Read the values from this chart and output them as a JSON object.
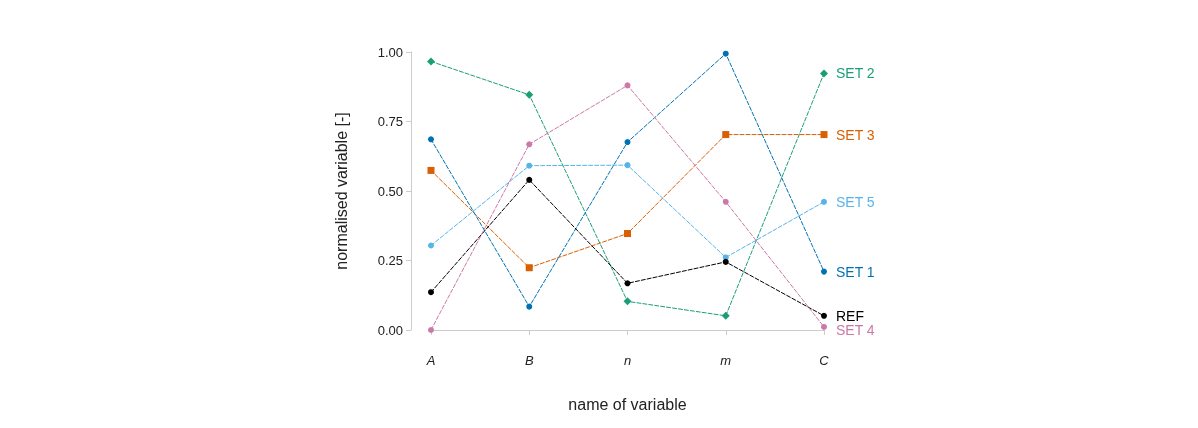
{
  "chart_data": {
    "type": "line",
    "xlabel": "name of variable",
    "ylabel": "normalised variable [-]",
    "categories": [
      "A",
      "B",
      "n",
      "m",
      "C"
    ],
    "ylim": [
      0,
      1
    ],
    "yticks": [
      {
        "value": 0,
        "label": "0.00"
      },
      {
        "value": 0.25,
        "label": "0.25"
      },
      {
        "value": 0.5,
        "label": "0.50"
      },
      {
        "value": 0.75,
        "label": "0.75"
      },
      {
        "value": 1,
        "label": "1.00"
      }
    ],
    "grid": false,
    "legend": false,
    "line_style": "dashed",
    "series": [
      {
        "name": "SET 2",
        "color": "#1b9e77",
        "marker": "diamond",
        "values": [
          0.966,
          0.846,
          0.103,
          0.051,
          0.923
        ]
      },
      {
        "name": "SET 3",
        "color": "#d95f02",
        "marker": "square",
        "values": [
          0.574,
          0.224,
          0.347,
          0.703,
          0.703
        ]
      },
      {
        "name": "SET 5",
        "color": "#56b4e9",
        "marker": "circle",
        "values": [
          0.304,
          0.591,
          0.593,
          0.261,
          0.461
        ]
      },
      {
        "name": "SET 1",
        "color": "#0072b2",
        "marker": "circle",
        "values": [
          0.686,
          0.084,
          0.676,
          0.994,
          0.21
        ]
      },
      {
        "name": "REF",
        "color": "#000000",
        "marker": "circle",
        "values": [
          0.136,
          0.54,
          0.168,
          0.245,
          0.051
        ]
      },
      {
        "name": "SET 4",
        "color": "#cc79a7",
        "marker": "circle",
        "values": [
          0,
          0.668,
          0.88,
          0.461,
          0.011
        ]
      }
    ]
  }
}
